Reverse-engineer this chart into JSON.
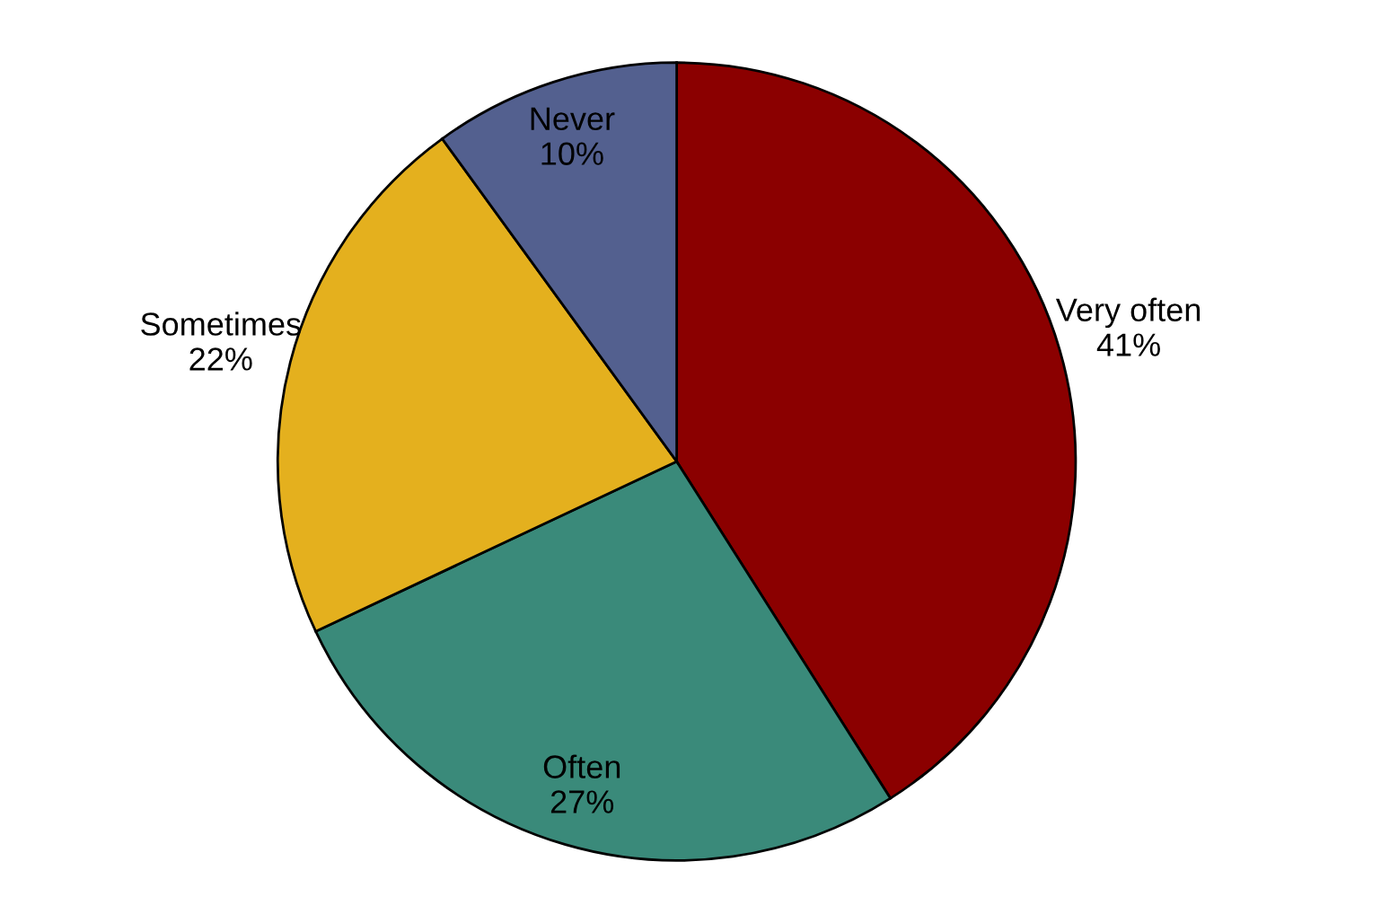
{
  "chart_data": {
    "type": "pie",
    "categories": [
      "Very often",
      "Often",
      "Sometimes",
      "Never"
    ],
    "values": [
      41,
      27,
      22,
      10
    ],
    "value_labels": [
      "41%",
      "27%",
      "22%",
      "10%"
    ],
    "colors": [
      "#8b0000",
      "#3a8a7a",
      "#e4b01e",
      "#53608f"
    ]
  }
}
